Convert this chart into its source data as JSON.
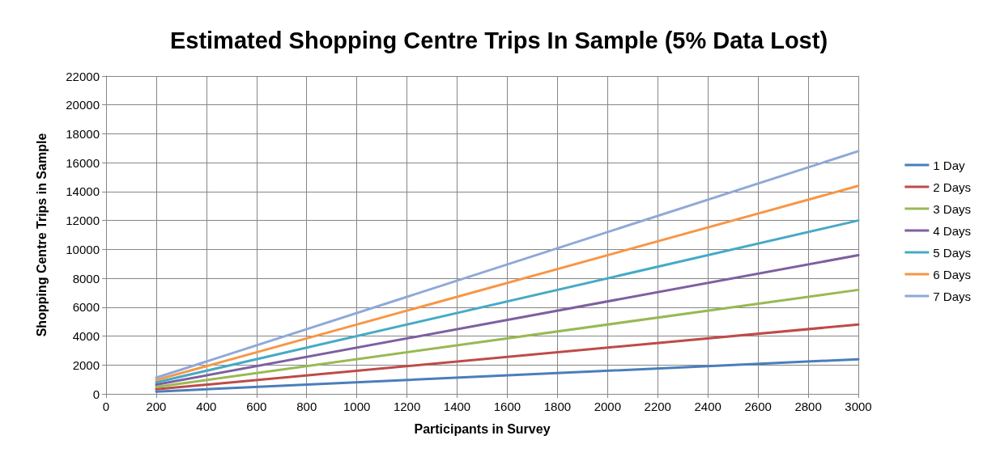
{
  "chart_data": {
    "type": "line",
    "title": "Estimated Shopping Centre Trips In Sample (5% Data Lost)",
    "xlabel": "Participants in Survey",
    "ylabel": "Shopping Centre Trips in Sample",
    "x": [
      200,
      3000
    ],
    "series": [
      {
        "name": "1 Day",
        "color": "#4a7ebb",
        "values": [
          160,
          2400
        ]
      },
      {
        "name": "2 Days",
        "color": "#be4b48",
        "values": [
          320,
          4800
        ]
      },
      {
        "name": "3 Days",
        "color": "#98b954",
        "values": [
          480,
          7200
        ]
      },
      {
        "name": "4 Days",
        "color": "#7d60a0",
        "values": [
          640,
          9600
        ]
      },
      {
        "name": "5 Days",
        "color": "#46aac5",
        "values": [
          800,
          12000
        ]
      },
      {
        "name": "6 Days",
        "color": "#f79646",
        "values": [
          960,
          14400
        ]
      },
      {
        "name": "7 Days",
        "color": "#8fa9d6",
        "values": [
          1120,
          16800
        ]
      }
    ],
    "xlim": [
      0,
      3000
    ],
    "xticks": [
      0,
      200,
      400,
      600,
      800,
      1000,
      1200,
      1400,
      1600,
      1800,
      2000,
      2200,
      2400,
      2600,
      2800,
      3000
    ],
    "ylim": [
      0,
      22000
    ],
    "yticks": [
      0,
      2000,
      4000,
      6000,
      8000,
      10000,
      12000,
      14000,
      16000,
      18000,
      20000,
      22000
    ],
    "grid": true,
    "legend": "right",
    "marker": "none",
    "line_style": "solid"
  }
}
